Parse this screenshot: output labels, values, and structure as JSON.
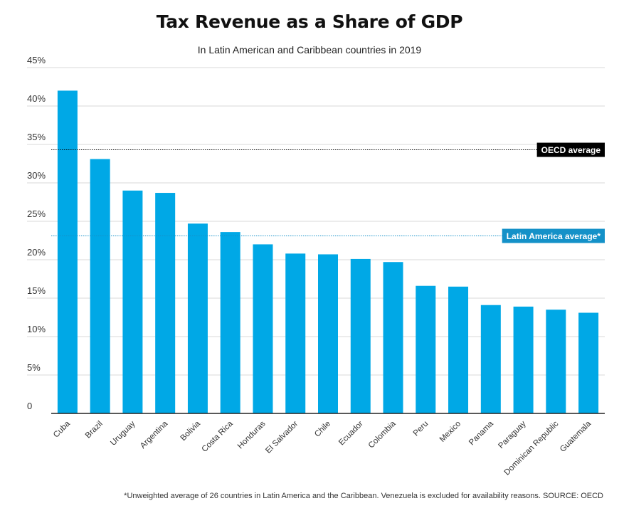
{
  "chart_data": {
    "type": "bar",
    "title": "Tax Revenue as a Share of GDP",
    "subtitle": "In Latin American and Caribbean countries in 2019",
    "categories": [
      "Cuba",
      "Brazil",
      "Uruguay",
      "Argentina",
      "Bolivia",
      "Costa Rica",
      "Honduras",
      "El Salvador",
      "Chile",
      "Ecuador",
      "Colombia",
      "Peru",
      "Mexico",
      "Panama",
      "Paraguay",
      "Dominican Republic",
      "Guatemala"
    ],
    "values": [
      42.0,
      33.1,
      29.0,
      28.7,
      24.7,
      23.6,
      22.0,
      20.8,
      20.7,
      20.1,
      19.7,
      16.6,
      16.5,
      14.1,
      13.9,
      13.5,
      13.1
    ],
    "ylim": [
      0,
      45
    ],
    "yticks": [
      0,
      5,
      10,
      15,
      20,
      25,
      30,
      35,
      40,
      45
    ],
    "ytick_labels": [
      "0",
      "5%",
      "10%",
      "15%",
      "20%",
      "25%",
      "30%",
      "35%",
      "40%",
      "45%"
    ],
    "grid": true,
    "bar_color": "#00a8e6",
    "reference_lines": [
      {
        "label": "OECD average",
        "value": 34.3,
        "color": "#000000"
      },
      {
        "label": "Latin America average*",
        "value": 23.1,
        "color": "#1491c8"
      }
    ],
    "footnote": "*Unweighted average of 26 countries in Latin America and the Caribbean. Venezuela is excluded for availability reasons. SOURCE: OECD"
  }
}
